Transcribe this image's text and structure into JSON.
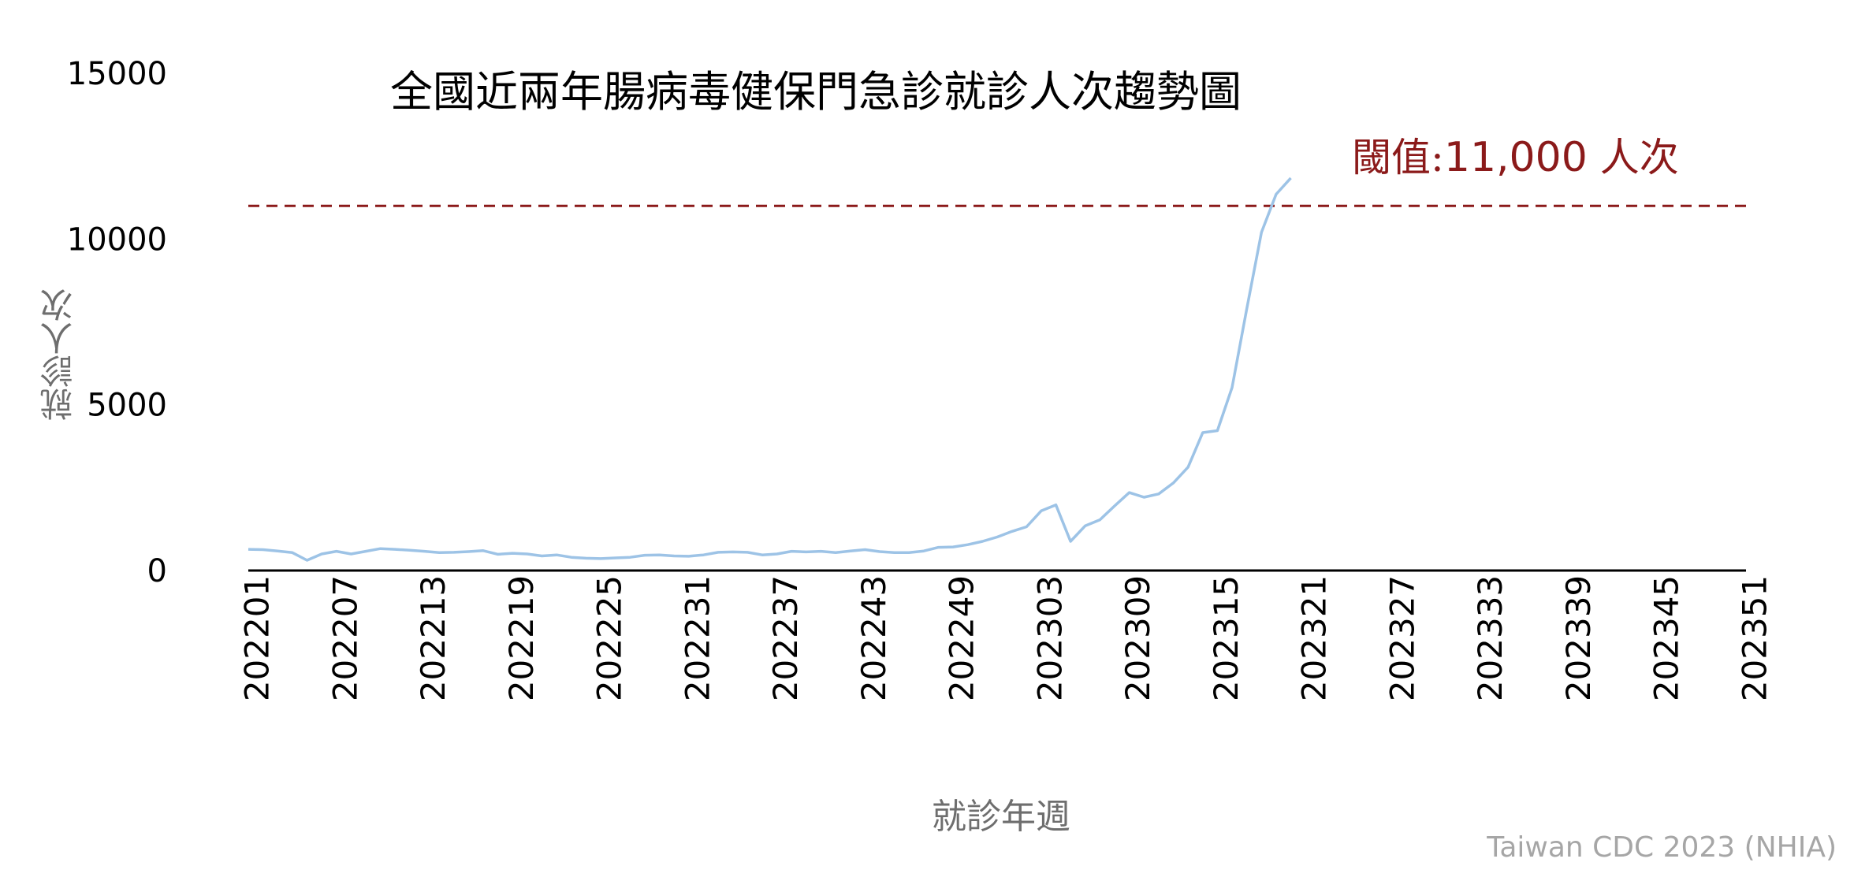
{
  "chart_data": {
    "type": "line",
    "title": "全國近兩年腸病毒健保門急診就診人次趨勢圖",
    "xlabel": "就診年週",
    "ylabel": "就診人次",
    "source": "Taiwan CDC 2023 (NHIA)",
    "ylim": [
      0,
      15000
    ],
    "yticks": [
      0,
      5000,
      10000,
      15000
    ],
    "x_tick_labels": [
      "202201",
      "202207",
      "202213",
      "202219",
      "202225",
      "202231",
      "202237",
      "202243",
      "202249",
      "202303",
      "202309",
      "202315",
      "202321",
      "202327",
      "202333",
      "202339",
      "202345",
      "202351"
    ],
    "total_weeks": 103,
    "threshold": {
      "value": 11000,
      "label_prefix": "閾值:",
      "label_value": "11,000",
      "label_unit": " 人次",
      "color": "#8b1a1a"
    },
    "series": [
      {
        "color": "#9dc3e6",
        "values": [
          640,
          630,
          590,
          540,
          310,
          500,
          580,
          500,
          580,
          660,
          640,
          610,
          580,
          540,
          550,
          570,
          600,
          490,
          520,
          500,
          440,
          470,
          400,
          370,
          360,
          380,
          400,
          460,
          470,
          440,
          430,
          470,
          550,
          560,
          550,
          470,
          500,
          580,
          560,
          580,
          540,
          590,
          630,
          570,
          540,
          540,
          590,
          700,
          710,
          780,
          880,
          1010,
          1180,
          1320,
          1800,
          1980,
          880,
          1350,
          1530,
          1950,
          2350,
          2210,
          2310,
          2640,
          3120,
          4160,
          4220,
          5520,
          7900,
          10200,
          11350,
          11840
        ]
      }
    ],
    "axis_color": "#000000",
    "grid": false
  }
}
